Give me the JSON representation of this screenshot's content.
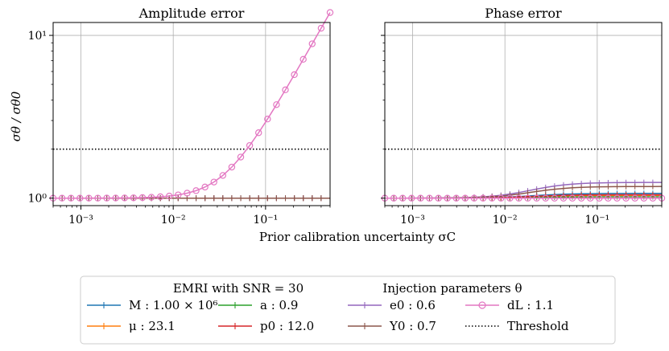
{
  "chart_data": [
    {
      "type": "line",
      "title": "Amplitude error",
      "xscale": "log",
      "yscale": "log",
      "xlim": [
        0.0005,
        0.5
      ],
      "ylim": [
        0.9,
        12
      ],
      "ylabel": "σθ / σθ0",
      "yticks": [
        {
          "value": 1,
          "label": "10⁰"
        },
        {
          "value": 10,
          "label": "10¹"
        }
      ],
      "xticks": [
        {
          "value": 0.001,
          "label": "10⁻³"
        },
        {
          "value": 0.01,
          "label": "10⁻²"
        },
        {
          "value": 0.1,
          "label": "10⁻¹"
        }
      ],
      "threshold": 2.0,
      "series": [
        {
          "name": "M",
          "plateau": 1.0,
          "x0": 0.1,
          "rise": 1
        },
        {
          "name": "mu",
          "plateau": 1.0,
          "x0": 0.1,
          "rise": 1
        },
        {
          "name": "a",
          "plateau": 1.0,
          "x0": 0.1,
          "rise": 1
        },
        {
          "name": "p0",
          "plateau": 1.0,
          "x0": 0.1,
          "rise": 1
        },
        {
          "name": "e0",
          "plateau": 1.0,
          "x0": 0.1,
          "rise": 1
        },
        {
          "name": "Y0",
          "plateau": 1.0,
          "x0": 0.1,
          "rise": 1
        },
        {
          "name": "dL",
          "plateau": 1.0,
          "x0": 0.0363,
          "rise": 2
        }
      ]
    },
    {
      "type": "line",
      "title": "Phase error",
      "xscale": "log",
      "yscale": "log",
      "xlim": [
        0.0005,
        0.5
      ],
      "ylim": [
        0.9,
        12
      ],
      "xticks": [
        {
          "value": 0.001,
          "label": "10⁻³"
        },
        {
          "value": 0.01,
          "label": "10⁻²"
        },
        {
          "value": 0.1,
          "label": "10⁻¹"
        }
      ],
      "threshold": 2.0,
      "series": [
        {
          "name": "M",
          "plateau": 1.07,
          "x0": 0.02,
          "rise": 1
        },
        {
          "name": "mu",
          "plateau": 1.04,
          "x0": 0.02,
          "rise": 1
        },
        {
          "name": "a",
          "plateau": 1.02,
          "x0": 0.02,
          "rise": 1
        },
        {
          "name": "p0",
          "plateau": 1.05,
          "x0": 0.02,
          "rise": 1
        },
        {
          "name": "e0",
          "plateau": 1.25,
          "x0": 0.02,
          "rise": 1
        },
        {
          "name": "Y0",
          "plateau": 1.18,
          "x0": 0.02,
          "rise": 1
        },
        {
          "name": "dL",
          "plateau": 1.0,
          "x0": 0.02,
          "rise": 1
        }
      ]
    }
  ],
  "figure": {
    "xlabel": "Prior calibration uncertainty σC"
  },
  "legend": {
    "title_left": "EMRI with SNR = 30",
    "title_right": "Injection parameters θ",
    "entries": [
      {
        "key": "M",
        "label": "M : 1.00 × 10⁶",
        "color": "#1f77b4",
        "marker": "plus"
      },
      {
        "key": "mu",
        "label": "μ : 23.1",
        "color": "#ff7f0e",
        "marker": "plus"
      },
      {
        "key": "a",
        "label": "a : 0.9",
        "color": "#2ca02c",
        "marker": "plus"
      },
      {
        "key": "p0",
        "label": "p0 : 12.0",
        "color": "#d62728",
        "marker": "plus"
      },
      {
        "key": "e0",
        "label": "e0 : 0.6",
        "color": "#9467bd",
        "marker": "plus"
      },
      {
        "key": "Y0",
        "label": "Y0 : 0.7",
        "color": "#8c564b",
        "marker": "plus"
      },
      {
        "key": "dL",
        "label": "dL : 1.1",
        "color": "#e377c2",
        "marker": "circle"
      },
      {
        "key": "threshold",
        "label": "Threshold",
        "color": "#000000",
        "marker": "dotted"
      }
    ]
  }
}
